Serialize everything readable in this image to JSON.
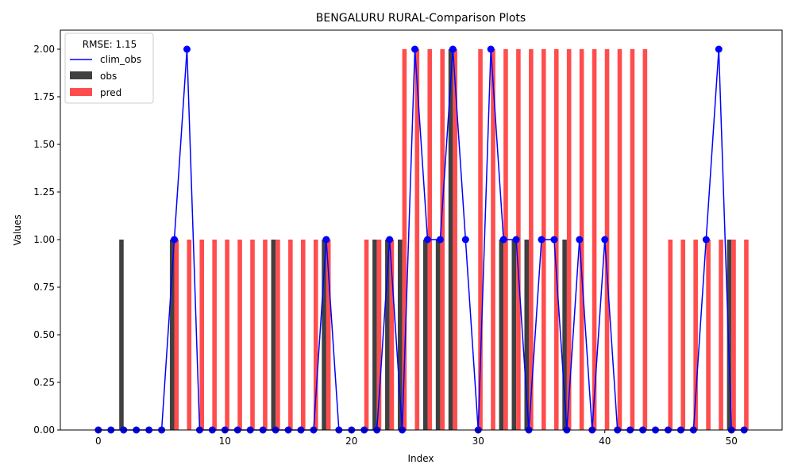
{
  "chart_data": {
    "type": "bar",
    "title": "BENGALURU RURAL-Comparison Plots",
    "xlabel": "Index",
    "ylabel": "Values",
    "xlim": [
      -3,
      54
    ],
    "ylim": [
      0,
      2.1
    ],
    "xticks": [
      0,
      10,
      20,
      30,
      40,
      50
    ],
    "yticks": [
      0.0,
      0.25,
      0.5,
      0.75,
      1.0,
      1.25,
      1.5,
      1.75,
      2.0
    ],
    "ytick_labels": [
      "0.00",
      "0.25",
      "0.50",
      "0.75",
      "1.00",
      "1.25",
      "1.50",
      "1.75",
      "2.00"
    ],
    "grid": false,
    "legend": {
      "title": "RMSE: 1.15",
      "placement": "top-left",
      "entries": [
        "clim_obs",
        "obs",
        "pred"
      ]
    },
    "x": [
      0,
      1,
      2,
      3,
      4,
      5,
      6,
      7,
      8,
      9,
      10,
      11,
      12,
      13,
      14,
      15,
      16,
      17,
      18,
      19,
      20,
      21,
      22,
      23,
      24,
      25,
      26,
      27,
      28,
      29,
      30,
      31,
      32,
      33,
      34,
      35,
      36,
      37,
      38,
      39,
      40,
      41,
      42,
      43,
      44,
      45,
      46,
      47,
      48,
      49,
      50,
      51
    ],
    "series": [
      {
        "name": "obs",
        "kind": "bar",
        "color": "#404040",
        "values": [
          0,
          0,
          1,
          0,
          0,
          0,
          1,
          0,
          0,
          0,
          0,
          0,
          0,
          0,
          1,
          0,
          0,
          0,
          1,
          0,
          0,
          0,
          1,
          1,
          1,
          0,
          1,
          1,
          2,
          0,
          0,
          0,
          1,
          1,
          1,
          0,
          0,
          1,
          0,
          0,
          0,
          0,
          0,
          0,
          0,
          0,
          0,
          0,
          0,
          0,
          1,
          0
        ]
      },
      {
        "name": "pred",
        "kind": "bar",
        "color": "#ff4d4d",
        "values": [
          0,
          0,
          0,
          0,
          0,
          0,
          1,
          1,
          1,
          1,
          1,
          1,
          1,
          1,
          1,
          1,
          1,
          1,
          1,
          0,
          0,
          1,
          1,
          1,
          2,
          2,
          2,
          2,
          2,
          0,
          2,
          2,
          2,
          2,
          2,
          2,
          2,
          2,
          2,
          2,
          2,
          2,
          2,
          2,
          0,
          1,
          1,
          1,
          1,
          1,
          1,
          1
        ]
      },
      {
        "name": "clim_obs",
        "kind": "line",
        "color": "#0000ff",
        "values": [
          0,
          0,
          0,
          0,
          0,
          0,
          1,
          2,
          0,
          0,
          0,
          0,
          0,
          0,
          0,
          0,
          0,
          0,
          1,
          0,
          0,
          0,
          0,
          1,
          0,
          2,
          1,
          1,
          2,
          1,
          0,
          2,
          1,
          1,
          0,
          1,
          1,
          0,
          1,
          0,
          1,
          0,
          0,
          0,
          0,
          0,
          0,
          0,
          1,
          2,
          0,
          0
        ]
      }
    ]
  }
}
